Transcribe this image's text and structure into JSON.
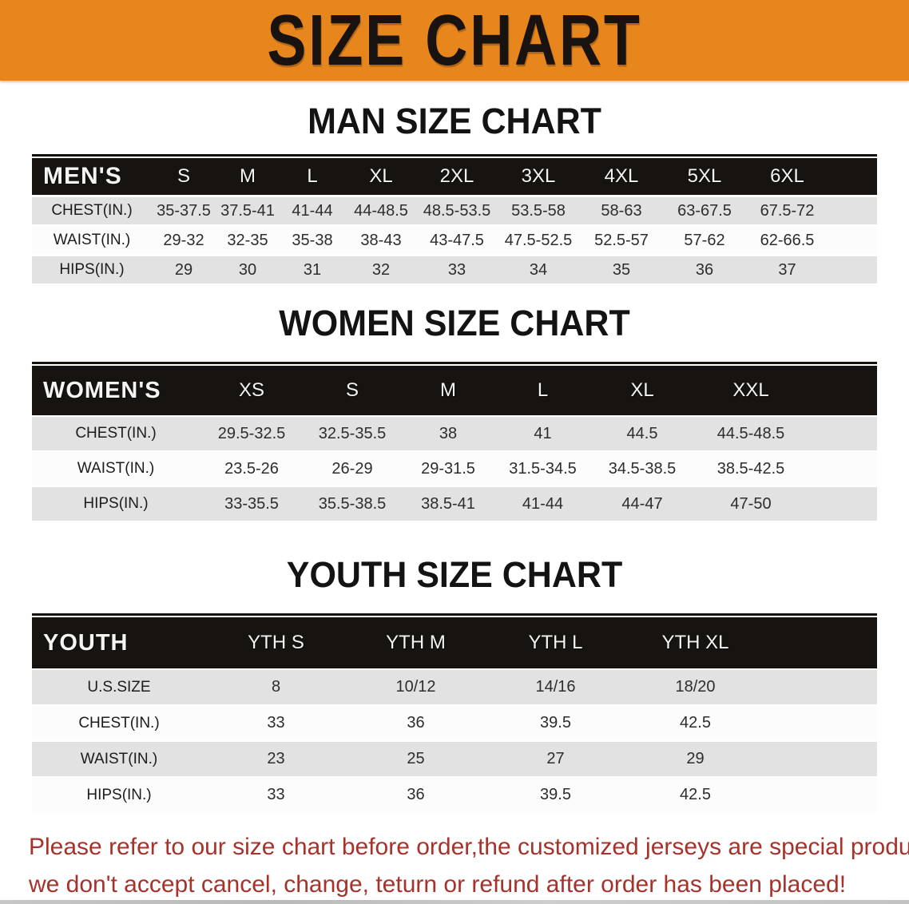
{
  "banner": {
    "title": "SIZE CHART"
  },
  "chart_data": [
    {
      "type": "table",
      "title": "MAN SIZE CHART",
      "columns": [
        "MEN'S",
        "S",
        "M",
        "L",
        "XL",
        "2XL",
        "3XL",
        "4XL",
        "5XL",
        "6XL"
      ],
      "rows": [
        [
          "CHEST(IN.)",
          "35-37.5",
          "37.5-41",
          "41-44",
          "44-48.5",
          "48.5-53.5",
          "53.5-58",
          "58-63",
          "63-67.5",
          "67.5-72"
        ],
        [
          "WAIST(IN.)",
          "29-32",
          "32-35",
          "35-38",
          "38-43",
          "43-47.5",
          "47.5-52.5",
          "52.5-57",
          "57-62",
          "62-66.5"
        ],
        [
          "HIPS(IN.)",
          "29",
          "30",
          "31",
          "32",
          "33",
          "34",
          "35",
          "36",
          "37"
        ]
      ]
    },
    {
      "type": "table",
      "title": "WOMEN SIZE CHART",
      "columns": [
        "WOMEN'S",
        "XS",
        "S",
        "M",
        "L",
        "XL",
        "XXL"
      ],
      "rows": [
        [
          "CHEST(IN.)",
          "29.5-32.5",
          "32.5-35.5",
          "38",
          "41",
          "44.5",
          "44.5-48.5"
        ],
        [
          "WAIST(IN.)",
          "23.5-26",
          "26-29",
          "29-31.5",
          "31.5-34.5",
          "34.5-38.5",
          "38.5-42.5"
        ],
        [
          "HIPS(IN.)",
          "33-35.5",
          "35.5-38.5",
          "38.5-41",
          "41-44",
          "44-47",
          "47-50"
        ]
      ]
    },
    {
      "type": "table",
      "title": "YOUTH SIZE CHART",
      "columns": [
        "YOUTH",
        "YTH S",
        "YTH M",
        "YTH L",
        "YTH XL"
      ],
      "rows": [
        [
          "U.S.SIZE",
          "8",
          "10/12",
          "14/16",
          "18/20"
        ],
        [
          "CHEST(IN.)",
          "33",
          "36",
          "39.5",
          "42.5"
        ],
        [
          "WAIST(IN.)",
          "23",
          "25",
          "27",
          "29"
        ],
        [
          "HIPS(IN.)",
          "33",
          "36",
          "39.5",
          "42.5"
        ]
      ]
    }
  ],
  "footer": {
    "line1": "Please refer to our size chart before order,the customized jerseys are special products,",
    "line2": "we don't accept cancel, change, teturn or refund after order has been placed!"
  },
  "colors": {
    "banner_bg": "#E8861E",
    "header_bar": "#171310",
    "row_shade": "#E2E2E2",
    "row_plain": "#FCFCFC",
    "footer_text": "#A5332B"
  }
}
